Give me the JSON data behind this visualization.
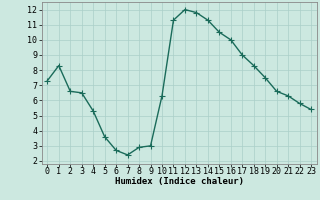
{
  "x": [
    0,
    1,
    2,
    3,
    4,
    5,
    6,
    7,
    8,
    9,
    10,
    11,
    12,
    13,
    14,
    15,
    16,
    17,
    18,
    19,
    20,
    21,
    22,
    23
  ],
  "y": [
    7.3,
    8.3,
    6.6,
    6.5,
    5.3,
    3.6,
    2.7,
    2.4,
    2.9,
    3.0,
    6.3,
    11.3,
    12.0,
    11.8,
    11.3,
    10.5,
    10.0,
    9.0,
    8.3,
    7.5,
    6.6,
    6.3,
    5.8,
    5.4
  ],
  "line_color": "#1a6b5a",
  "marker": "D",
  "marker_size": 2.0,
  "bg_color": "#cce8e0",
  "grid_color": "#aacfc8",
  "xlabel": "Humidex (Indice chaleur)",
  "xlim": [
    -0.5,
    23.5
  ],
  "ylim": [
    1.8,
    12.5
  ],
  "yticks": [
    2,
    3,
    4,
    5,
    6,
    7,
    8,
    9,
    10,
    11,
    12
  ],
  "xticks": [
    0,
    1,
    2,
    3,
    4,
    5,
    6,
    7,
    8,
    9,
    10,
    11,
    12,
    13,
    14,
    15,
    16,
    17,
    18,
    19,
    20,
    21,
    22,
    23
  ],
  "xlabel_fontsize": 6.5,
  "tick_fontsize": 6.0,
  "linewidth": 1.0
}
